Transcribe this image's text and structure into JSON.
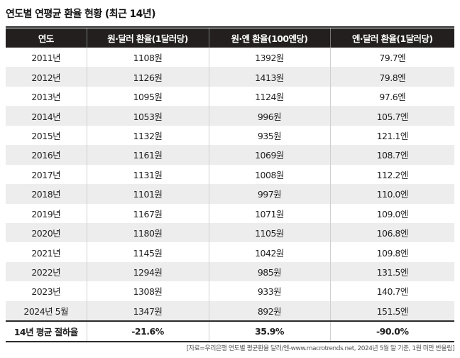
{
  "title": "연도별 연평균 환율 현황 (최근 14년)",
  "table": {
    "headers": [
      "연도",
      "원·달러 환율(1달러당)",
      "원·엔 환율(100엔당)",
      "엔·달러 환율(1달러당)"
    ],
    "rows": [
      [
        "2011년",
        "1108원",
        "1392원",
        "79.7엔"
      ],
      [
        "2012년",
        "1126원",
        "1413원",
        "79.8엔"
      ],
      [
        "2013년",
        "1095원",
        "1124원",
        "97.6엔"
      ],
      [
        "2014년",
        "1053원",
        "996원",
        "105.7엔"
      ],
      [
        "2015년",
        "1132원",
        "935원",
        "121.1엔"
      ],
      [
        "2016년",
        "1161원",
        "1069원",
        "108.7엔"
      ],
      [
        "2017년",
        "1131원",
        "1008원",
        "112.2엔"
      ],
      [
        "2018년",
        "1101원",
        "997원",
        "110.0엔"
      ],
      [
        "2019년",
        "1167원",
        "1071원",
        "109.0엔"
      ],
      [
        "2020년",
        "1180원",
        "1105원",
        "106.8엔"
      ],
      [
        "2021년",
        "1145원",
        "1042원",
        "109.8엔"
      ],
      [
        "2022년",
        "1294원",
        "985원",
        "131.5엔"
      ],
      [
        "2023년",
        "1308원",
        "933원",
        "140.7엔"
      ],
      [
        "2024년 5월",
        "1347원",
        "892원",
        "151.5엔"
      ]
    ],
    "summary": [
      "14년 평균 절하율",
      "-21.6%",
      "35.9%",
      "-90.0%"
    ]
  },
  "source": "[자료=우리은행 연도별 평균환율 달러/엔-www.macrotrends.net, 2024년 5월 말 기준, 1원 미만 반올림]"
}
